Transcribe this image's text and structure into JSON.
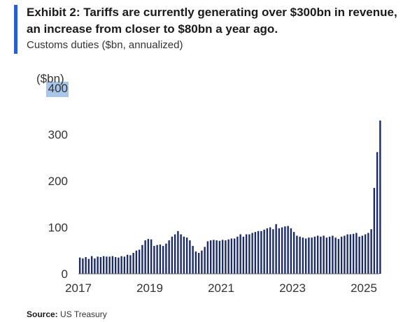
{
  "header": {
    "title": "Exhibit 2: Tariffs are currently generating over $300bn in revenue, an increase from closer to $80bn a year ago.",
    "subtitle": "Customs duties ($bn, annualized)",
    "accent_color": "#2a5cd6"
  },
  "footer": {
    "source_label": "Source:",
    "source_text": "US Treasury"
  },
  "chart_data": {
    "type": "bar",
    "ylabel": "($bn)",
    "ylim": [
      0,
      400
    ],
    "yticks": [
      0,
      100,
      200,
      300,
      400
    ],
    "xticks": [
      "2017",
      "2019",
      "2021",
      "2023",
      "2025"
    ],
    "bar_color": "#1b2a6b",
    "x_start": "2017-01",
    "categories": [
      "2017-01",
      "2017-02",
      "2017-03",
      "2017-04",
      "2017-05",
      "2017-06",
      "2017-07",
      "2017-08",
      "2017-09",
      "2017-10",
      "2017-11",
      "2017-12",
      "2018-01",
      "2018-02",
      "2018-03",
      "2018-04",
      "2018-05",
      "2018-06",
      "2018-07",
      "2018-08",
      "2018-09",
      "2018-10",
      "2018-11",
      "2018-12",
      "2019-01",
      "2019-02",
      "2019-03",
      "2019-04",
      "2019-05",
      "2019-06",
      "2019-07",
      "2019-08",
      "2019-09",
      "2019-10",
      "2019-11",
      "2019-12",
      "2020-01",
      "2020-02",
      "2020-03",
      "2020-04",
      "2020-05",
      "2020-06",
      "2020-07",
      "2020-08",
      "2020-09",
      "2020-10",
      "2020-11",
      "2020-12",
      "2021-01",
      "2021-02",
      "2021-03",
      "2021-04",
      "2021-05",
      "2021-06",
      "2021-07",
      "2021-08",
      "2021-09",
      "2021-10",
      "2021-11",
      "2021-12",
      "2022-01",
      "2022-02",
      "2022-03",
      "2022-04",
      "2022-05",
      "2022-06",
      "2022-07",
      "2022-08",
      "2022-09",
      "2022-10",
      "2022-11",
      "2022-12",
      "2023-01",
      "2023-02",
      "2023-03",
      "2023-04",
      "2023-05",
      "2023-06",
      "2023-07",
      "2023-08",
      "2023-09",
      "2023-10",
      "2023-11",
      "2023-12",
      "2024-01",
      "2024-02",
      "2024-03",
      "2024-04",
      "2024-05",
      "2024-06",
      "2024-07",
      "2024-08",
      "2024-09",
      "2024-10",
      "2024-11",
      "2024-12",
      "2025-01",
      "2025-02",
      "2025-03",
      "2025-04",
      "2025-05",
      "2025-06"
    ],
    "values": [
      35,
      33,
      36,
      32,
      38,
      33,
      37,
      36,
      38,
      37,
      37,
      38,
      36,
      35,
      38,
      37,
      41,
      40,
      45,
      50,
      52,
      62,
      72,
      75,
      74,
      60,
      62,
      63,
      60,
      65,
      72,
      80,
      85,
      92,
      85,
      80,
      78,
      72,
      60,
      48,
      45,
      50,
      58,
      70,
      72,
      73,
      72,
      71,
      73,
      72,
      74,
      76,
      76,
      80,
      85,
      80,
      85,
      85,
      88,
      90,
      92,
      92,
      95,
      98,
      100,
      96,
      107,
      98,
      100,
      102,
      103,
      98,
      90,
      82,
      80,
      78,
      76,
      78,
      78,
      80,
      82,
      80,
      82,
      78,
      80,
      82,
      78,
      75,
      80,
      82,
      85,
      85,
      86,
      88,
      80,
      82,
      85,
      88,
      96,
      185,
      262,
      330
    ]
  }
}
